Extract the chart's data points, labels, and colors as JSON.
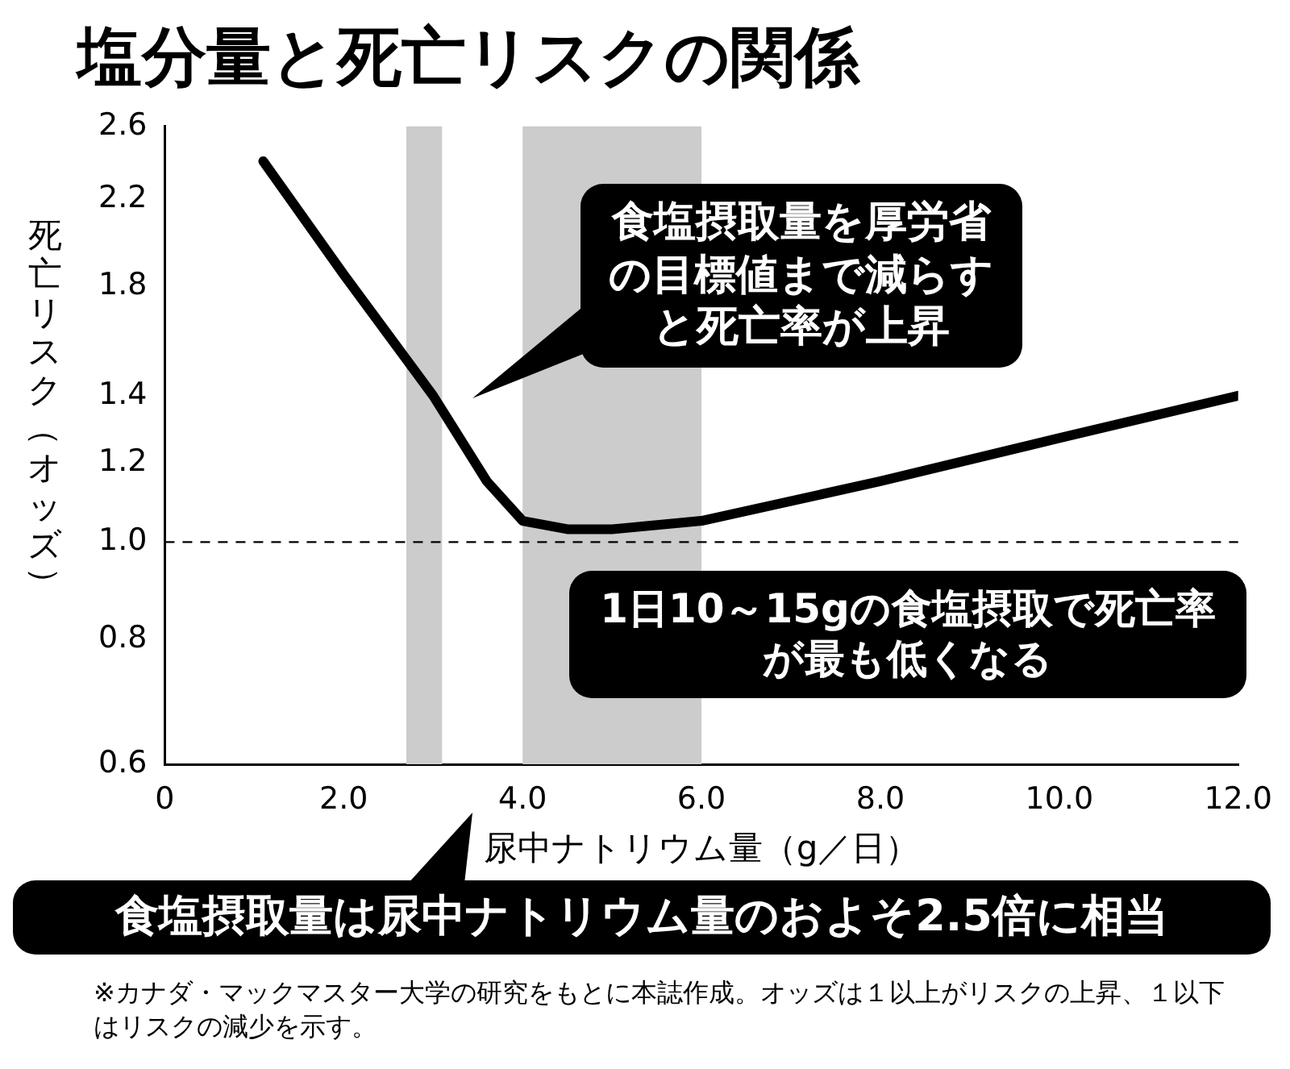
{
  "chart_data": {
    "type": "line",
    "title": "塩分量と死亡リスクの関係",
    "xlabel": "尿中ナトリウム量（g／日）",
    "ylabel": "死亡リスク（オッズ）",
    "x": [
      1.1,
      2,
      3,
      3.6,
      4,
      4.5,
      5,
      6,
      8,
      10,
      12
    ],
    "series": [
      {
        "color": "#000000",
        "values": [
          2.4,
          1.85,
          1.4,
          1.15,
          1.05,
          1.03,
          1.03,
          1.05,
          1.15,
          1.27,
          1.4
        ]
      }
    ],
    "xlim": [
      0,
      12
    ],
    "xticks": [
      0,
      {
        "value": 2,
        "label": "2.0"
      },
      {
        "value": 4,
        "label": "4.0"
      },
      {
        "value": 6,
        "label": "6.0"
      },
      {
        "value": 8,
        "label": "8.0"
      },
      {
        "value": 10,
        "label": "10.0"
      },
      {
        "value": 12,
        "label": "12.0"
      }
    ],
    "ylim": [
      0.6,
      2.6
    ],
    "yticks": [
      0.6,
      0.8,
      {
        "value": 1,
        "label": "1.0"
      },
      1.2,
      1.4,
      1.8,
      2.2,
      2.6
    ],
    "log": "y",
    "grid": false,
    "legend": false,
    "marker": "none",
    "line_style": "solid",
    "ref_lines": [
      {
        "axis": "y",
        "value": 1,
        "color": "#000000",
        "line_style": "dashed"
      }
    ],
    "bands": [
      {
        "axis": "x",
        "from": 2.7,
        "to": 3.1,
        "color": "#cccccc"
      },
      {
        "axis": "x",
        "from": 4,
        "to": 6,
        "color": "#cccccc"
      }
    ],
    "annotations": [
      "食塩摂取量を厚労省の目標値まで減らすと死亡率が上昇",
      "1日10～15gの食塩摂取で死亡率が最も低くなる",
      "食塩摂取量は尿中ナトリウム量のおよそ2.5倍に相当",
      "※カナダ・マックマスター大学の研究をもとに本誌作成。オッズは１以上がリスクの上昇、１以下はリスクの減少を示す。"
    ]
  }
}
